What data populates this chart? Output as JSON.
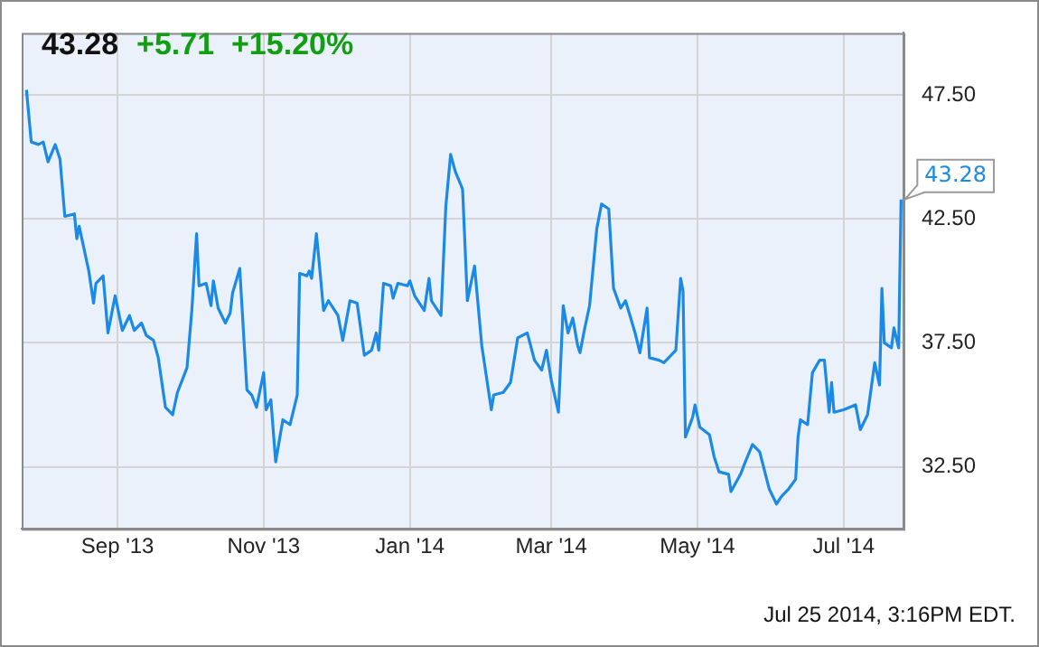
{
  "chart_data": {
    "type": "line",
    "title": "43.28",
    "subtitle": "+5.71  +15.20%",
    "annotations": [
      {
        "text": "43.28",
        "x": "2014-07-25",
        "y": 43.28
      },
      "Jul 25 2014, 3:16PM EDT."
    ],
    "xlim": [
      "2013-07-23",
      "2014-07-26"
    ],
    "xticks": [
      {
        "value": "2013-09-01",
        "label": "Sep '13"
      },
      {
        "value": "2013-11-01",
        "label": "Nov '13"
      },
      {
        "value": "2014-01-01",
        "label": "Jan '14"
      },
      {
        "value": "2014-03-01",
        "label": "Mar '14"
      },
      {
        "value": "2014-05-01",
        "label": "May '14"
      },
      {
        "value": "2014-07-01",
        "label": "Jul '14"
      }
    ],
    "ylim": [
      30,
      50
    ],
    "yticks": [
      {
        "value": 32.5,
        "label": "32.50"
      },
      {
        "value": 37.5,
        "label": "37.50"
      },
      {
        "value": 42.5,
        "label": "42.50"
      },
      {
        "value": 47.5,
        "label": "47.50"
      }
    ],
    "grid": true,
    "marker": "none",
    "line_style": "solid",
    "x": [
      "2013-07-25",
      "2013-07-27",
      "2013-07-30",
      "2013-08-01",
      "2013-08-03",
      "2013-08-06",
      "2013-08-08",
      "2013-08-10",
      "2013-08-14",
      "2013-08-15",
      "2013-08-16",
      "2013-08-20",
      "2013-08-22",
      "2013-08-23",
      "2013-08-26",
      "2013-08-28",
      "2013-08-31",
      "2013-09-03",
      "2013-09-06",
      "2013-09-08",
      "2013-09-11",
      "2013-09-13",
      "2013-09-16",
      "2013-09-18",
      "2013-09-21",
      "2013-09-24",
      "2013-09-26",
      "2013-09-30",
      "2013-10-02",
      "2013-10-04",
      "2013-10-05",
      "2013-10-08",
      "2013-10-10",
      "2013-10-11",
      "2013-10-13",
      "2013-10-16",
      "2013-10-18",
      "2013-10-19",
      "2013-10-22",
      "2013-10-25",
      "2013-10-27",
      "2013-10-29",
      "2013-11-01",
      "2013-11-02",
      "2013-11-04",
      "2013-11-06",
      "2013-11-09",
      "2013-11-12",
      "2013-11-15",
      "2013-11-16",
      "2013-11-19",
      "2013-11-20",
      "2013-11-21",
      "2013-11-23",
      "2013-11-24",
      "2013-11-26",
      "2013-11-28",
      "2013-12-02",
      "2013-12-04",
      "2013-12-07",
      "2013-12-10",
      "2013-12-13",
      "2013-12-16",
      "2013-12-18",
      "2013-12-19",
      "2013-12-21",
      "2013-12-24",
      "2013-12-25",
      "2013-12-27",
      "2013-12-31",
      "2014-01-01",
      "2014-01-03",
      "2014-01-07",
      "2014-01-09",
      "2014-01-10",
      "2014-01-14",
      "2014-01-16",
      "2014-01-18",
      "2014-01-20",
      "2014-01-23",
      "2014-01-25",
      "2014-01-28",
      "2014-01-31",
      "2014-02-04",
      "2014-02-05",
      "2014-02-09",
      "2014-02-12",
      "2014-02-15",
      "2014-02-19",
      "2014-02-22",
      "2014-02-25",
      "2014-02-27",
      "2014-03-01",
      "2014-03-04",
      "2014-03-06",
      "2014-03-08",
      "2014-03-10",
      "2014-03-12",
      "2014-03-13",
      "2014-03-15",
      "2014-03-17",
      "2014-03-20",
      "2014-03-22",
      "2014-03-25",
      "2014-03-27",
      "2014-03-30",
      "2014-04-01",
      "2014-04-05",
      "2014-04-07",
      "2014-04-10",
      "2014-04-11",
      "2014-04-15",
      "2014-04-17",
      "2014-04-22",
      "2014-04-24",
      "2014-04-25",
      "2014-04-26",
      "2014-04-29",
      "2014-04-30",
      "2014-05-02",
      "2014-05-06",
      "2014-05-08",
      "2014-05-10",
      "2014-05-14",
      "2014-05-15",
      "2014-05-19",
      "2014-05-21",
      "2014-05-24",
      "2014-05-27",
      "2014-05-31",
      "2014-06-03",
      "2014-06-05",
      "2014-06-08",
      "2014-06-11",
      "2014-06-12",
      "2014-06-13",
      "2014-06-16",
      "2014-06-18",
      "2014-06-21",
      "2014-06-23",
      "2014-06-25",
      "2014-06-26",
      "2014-06-27",
      "2014-07-01",
      "2014-07-06",
      "2014-07-08",
      "2014-07-11",
      "2014-07-14",
      "2014-07-16",
      "2014-07-17",
      "2014-07-18",
      "2014-07-21",
      "2014-07-22",
      "2014-07-24",
      "2014-07-25"
    ],
    "series": [
      {
        "color": "#1a8ae6",
        "values": [
          47.7,
          45.6,
          45.5,
          45.6,
          44.8,
          45.5,
          44.9,
          42.6,
          42.7,
          41.7,
          42.2,
          40.4,
          39.1,
          39.9,
          40.2,
          37.9,
          39.4,
          38.0,
          38.6,
          38.0,
          38.3,
          37.8,
          37.6,
          36.9,
          34.9,
          34.6,
          35.5,
          36.5,
          38.8,
          41.9,
          39.8,
          39.9,
          39.0,
          40.0,
          38.9,
          38.3,
          38.7,
          39.5,
          40.5,
          35.6,
          35.4,
          34.9,
          36.3,
          34.8,
          35.2,
          32.7,
          34.4,
          34.2,
          35.4,
          40.3,
          40.2,
          40.4,
          40.1,
          41.9,
          40.9,
          38.8,
          39.2,
          38.6,
          37.6,
          39.2,
          39.1,
          37.0,
          37.2,
          37.9,
          37.2,
          39.9,
          39.8,
          39.3,
          39.9,
          39.8,
          40.0,
          39.4,
          38.8,
          40.1,
          39.2,
          38.6,
          43.0,
          45.1,
          44.4,
          43.7,
          39.2,
          40.6,
          37.4,
          34.8,
          35.4,
          35.5,
          35.9,
          37.7,
          37.9,
          36.8,
          36.4,
          37.2,
          36.0,
          34.7,
          39.0,
          37.9,
          38.5,
          37.4,
          37.1,
          38.1,
          39.0,
          42.1,
          43.1,
          42.9,
          39.7,
          38.9,
          39.2,
          37.9,
          37.1,
          38.9,
          36.9,
          36.8,
          36.7,
          37.2,
          40.1,
          39.6,
          33.7,
          34.5,
          35.0,
          34.1,
          33.8,
          32.9,
          32.3,
          32.2,
          31.5,
          32.2,
          32.7,
          33.4,
          33.1,
          31.6,
          31.0,
          31.3,
          31.6,
          32.0,
          33.7,
          34.4,
          34.2,
          36.3,
          36.8,
          36.8,
          34.7,
          35.9,
          34.7,
          34.8,
          35.0,
          34.0,
          34.6,
          36.7,
          35.8,
          39.7,
          37.5,
          37.3,
          38.1,
          37.3,
          43.28
        ]
      }
    ]
  }
}
